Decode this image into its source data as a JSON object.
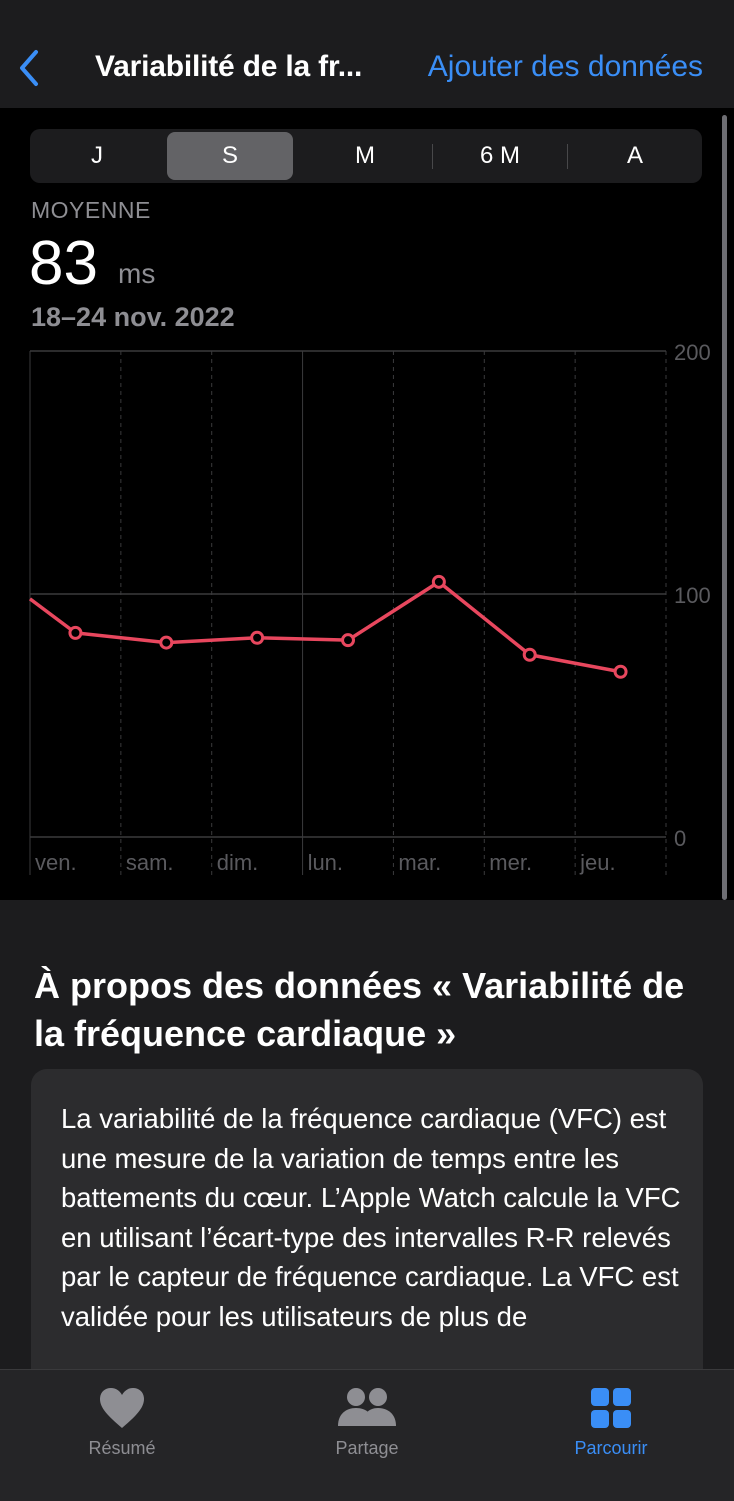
{
  "nav": {
    "title": "Variabilité de la fr...",
    "add_label": "Ajouter des données"
  },
  "segments": [
    "J",
    "S",
    "M",
    "6 M",
    "A"
  ],
  "selected_segment": "S",
  "summary": {
    "label": "MOYENNE",
    "value": "83",
    "unit": "ms",
    "range": "18–24 nov. 2022"
  },
  "chart_data": {
    "type": "line",
    "categories": [
      "ven.",
      "sam.",
      "dim.",
      "lun.",
      "mar.",
      "mer.",
      "jeu."
    ],
    "series": [
      {
        "values": [
          84,
          80,
          82,
          81,
          105,
          75,
          68
        ],
        "color": "#e8475e"
      }
    ],
    "previous_value": 98,
    "ylim": [
      0,
      200
    ],
    "yticks": [
      "0",
      "100",
      "200"
    ],
    "grid": true
  },
  "about": {
    "title": "À propos des données « Variabilité de la fréquence cardiaque »",
    "body": "La variabilité de la fréquence cardiaque (VFC) est une mesure de la variation de temps entre les battements du cœur. L’Apple Watch calcule la VFC en utilisant l’écart-type des intervalles R-R relevés par le capteur de fréquence cardiaque. La VFC est validée pour les utilisateurs de plus de"
  },
  "tabs": [
    {
      "label": "Résumé",
      "icon": "heart-icon",
      "active": false
    },
    {
      "label": "Partage",
      "icon": "people-icon",
      "active": false
    },
    {
      "label": "Parcourir",
      "icon": "grid-icon",
      "active": true
    }
  ],
  "colors": {
    "accent": "#3a8ef6",
    "series": "#e8475e"
  }
}
